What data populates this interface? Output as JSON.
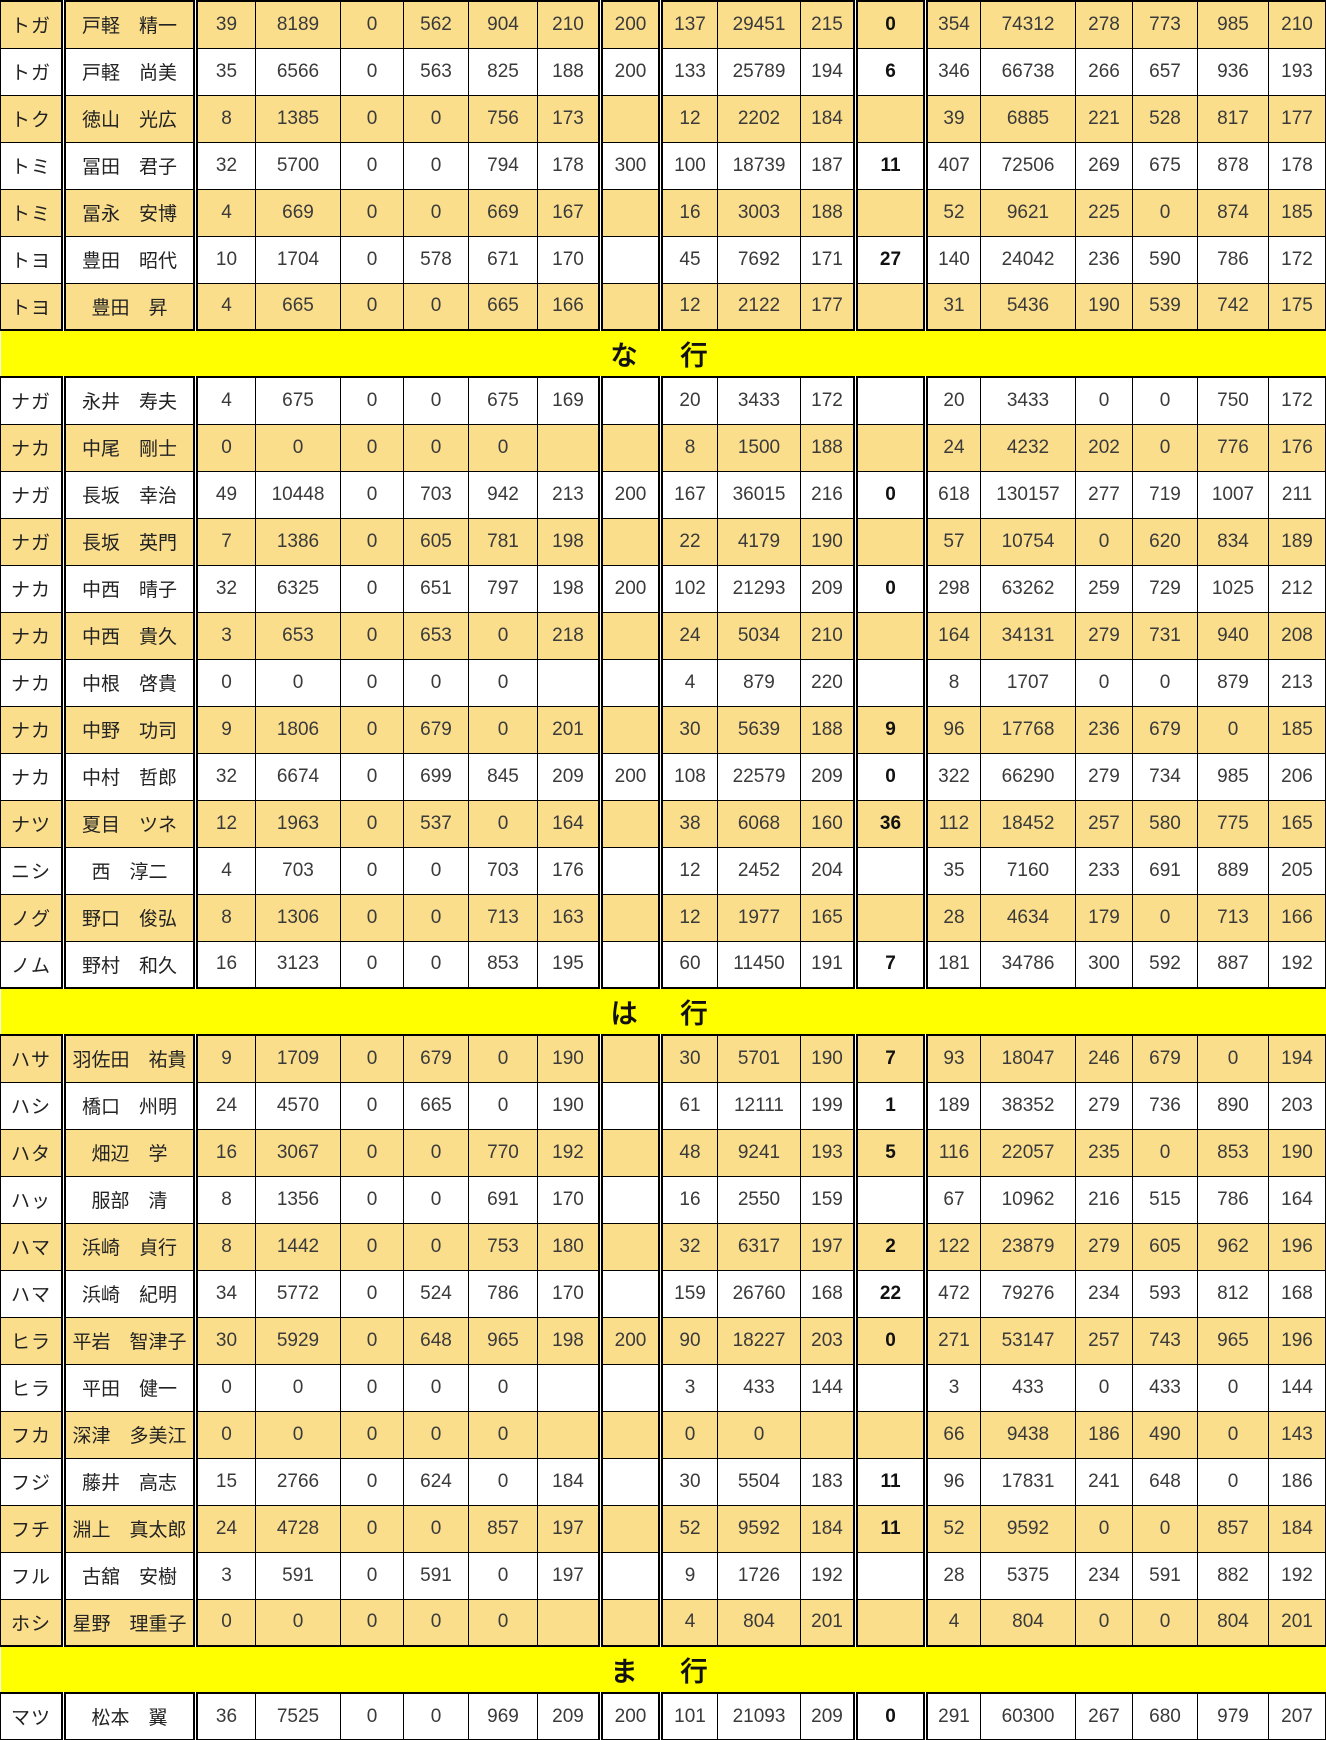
{
  "colors": {
    "row_gold": "#fade8c",
    "row_white": "#ffffff",
    "section_yellow": "#ffff00",
    "grid_border": "#000000"
  },
  "table": {
    "rows": [
      {
        "type": "player",
        "shade": "gold",
        "kana": "トガ",
        "name": "戸軽　精一",
        "values": [
          "39",
          "8189",
          "0",
          "562",
          "904",
          "210",
          "200",
          "137",
          "29451",
          "215",
          "0",
          "354",
          "74312",
          "278",
          "773",
          "985",
          "210"
        ]
      },
      {
        "type": "player",
        "shade": "white",
        "kana": "トガ",
        "name": "戸軽　尚美",
        "values": [
          "35",
          "6566",
          "0",
          "563",
          "825",
          "188",
          "200",
          "133",
          "25789",
          "194",
          "6",
          "346",
          "66738",
          "266",
          "657",
          "936",
          "193"
        ]
      },
      {
        "type": "player",
        "shade": "gold",
        "kana": "トク",
        "name": "徳山　光広",
        "values": [
          "8",
          "1385",
          "0",
          "0",
          "756",
          "173",
          "",
          "12",
          "2202",
          "184",
          "",
          "39",
          "6885",
          "221",
          "528",
          "817",
          "177"
        ]
      },
      {
        "type": "player",
        "shade": "white",
        "kana": "トミ",
        "name": "冨田　君子",
        "values": [
          "32",
          "5700",
          "0",
          "0",
          "794",
          "178",
          "300",
          "100",
          "18739",
          "187",
          "11",
          "407",
          "72506",
          "269",
          "675",
          "878",
          "178"
        ]
      },
      {
        "type": "player",
        "shade": "gold",
        "kana": "トミ",
        "name": "冨永　安博",
        "values": [
          "4",
          "669",
          "0",
          "0",
          "669",
          "167",
          "",
          "16",
          "3003",
          "188",
          "",
          "52",
          "9621",
          "225",
          "0",
          "874",
          "185"
        ]
      },
      {
        "type": "player",
        "shade": "white",
        "kana": "トヨ",
        "name": "豊田　昭代",
        "values": [
          "10",
          "1704",
          "0",
          "578",
          "671",
          "170",
          "",
          "45",
          "7692",
          "171",
          "27",
          "140",
          "24042",
          "236",
          "590",
          "786",
          "172"
        ]
      },
      {
        "type": "player",
        "shade": "gold",
        "kana": "トヨ",
        "name": "豊田　昇",
        "values": [
          "4",
          "665",
          "0",
          "0",
          "665",
          "166",
          "",
          "12",
          "2122",
          "177",
          "",
          "31",
          "5436",
          "190",
          "539",
          "742",
          "175"
        ]
      },
      {
        "type": "section",
        "label": "な　行"
      },
      {
        "type": "player",
        "shade": "white",
        "kana": "ナガ",
        "name": "永井　寿夫",
        "values": [
          "4",
          "675",
          "0",
          "0",
          "675",
          "169",
          "",
          "20",
          "3433",
          "172",
          "",
          "20",
          "3433",
          "0",
          "0",
          "750",
          "172"
        ]
      },
      {
        "type": "player",
        "shade": "gold",
        "kana": "ナカ",
        "name": "中尾　剛士",
        "values": [
          "0",
          "0",
          "0",
          "0",
          "0",
          "",
          "",
          "8",
          "1500",
          "188",
          "",
          "24",
          "4232",
          "202",
          "0",
          "776",
          "176"
        ]
      },
      {
        "type": "player",
        "shade": "white",
        "kana": "ナガ",
        "name": "長坂　幸治",
        "values": [
          "49",
          "10448",
          "0",
          "703",
          "942",
          "213",
          "200",
          "167",
          "36015",
          "216",
          "0",
          "618",
          "130157",
          "277",
          "719",
          "1007",
          "211"
        ]
      },
      {
        "type": "player",
        "shade": "gold",
        "kana": "ナガ",
        "name": "長坂　英門",
        "values": [
          "7",
          "1386",
          "0",
          "605",
          "781",
          "198",
          "",
          "22",
          "4179",
          "190",
          "",
          "57",
          "10754",
          "0",
          "620",
          "834",
          "189"
        ]
      },
      {
        "type": "player",
        "shade": "white",
        "kana": "ナカ",
        "name": "中西　晴子",
        "values": [
          "32",
          "6325",
          "0",
          "651",
          "797",
          "198",
          "200",
          "102",
          "21293",
          "209",
          "0",
          "298",
          "63262",
          "259",
          "729",
          "1025",
          "212"
        ]
      },
      {
        "type": "player",
        "shade": "gold",
        "kana": "ナカ",
        "name": "中西　貴久",
        "values": [
          "3",
          "653",
          "0",
          "653",
          "0",
          "218",
          "",
          "24",
          "5034",
          "210",
          "",
          "164",
          "34131",
          "279",
          "731",
          "940",
          "208"
        ]
      },
      {
        "type": "player",
        "shade": "white",
        "kana": "ナカ",
        "name": "中根　啓貴",
        "values": [
          "0",
          "0",
          "0",
          "0",
          "0",
          "",
          "",
          "4",
          "879",
          "220",
          "",
          "8",
          "1707",
          "0",
          "0",
          "879",
          "213"
        ]
      },
      {
        "type": "player",
        "shade": "gold",
        "kana": "ナカ",
        "name": "中野　功司",
        "values": [
          "9",
          "1806",
          "0",
          "679",
          "0",
          "201",
          "",
          "30",
          "5639",
          "188",
          "9",
          "96",
          "17768",
          "236",
          "679",
          "0",
          "185"
        ]
      },
      {
        "type": "player",
        "shade": "white",
        "kana": "ナカ",
        "name": "中村　哲郎",
        "values": [
          "32",
          "6674",
          "0",
          "699",
          "845",
          "209",
          "200",
          "108",
          "22579",
          "209",
          "0",
          "322",
          "66290",
          "279",
          "734",
          "985",
          "206"
        ]
      },
      {
        "type": "player",
        "shade": "gold",
        "kana": "ナツ",
        "name": "夏目　ツネ",
        "values": [
          "12",
          "1963",
          "0",
          "537",
          "0",
          "164",
          "",
          "38",
          "6068",
          "160",
          "36",
          "112",
          "18452",
          "257",
          "580",
          "775",
          "165"
        ]
      },
      {
        "type": "player",
        "shade": "white",
        "kana": "ニシ",
        "name": "西　淳二",
        "values": [
          "4",
          "703",
          "0",
          "0",
          "703",
          "176",
          "",
          "12",
          "2452",
          "204",
          "",
          "35",
          "7160",
          "233",
          "691",
          "889",
          "205"
        ]
      },
      {
        "type": "player",
        "shade": "gold",
        "kana": "ノグ",
        "name": "野口　俊弘",
        "values": [
          "8",
          "1306",
          "0",
          "0",
          "713",
          "163",
          "",
          "12",
          "1977",
          "165",
          "",
          "28",
          "4634",
          "179",
          "0",
          "713",
          "166"
        ]
      },
      {
        "type": "player",
        "shade": "white",
        "kana": "ノム",
        "name": "野村　和久",
        "values": [
          "16",
          "3123",
          "0",
          "0",
          "853",
          "195",
          "",
          "60",
          "11450",
          "191",
          "7",
          "181",
          "34786",
          "300",
          "592",
          "887",
          "192"
        ]
      },
      {
        "type": "section",
        "label": "は　行"
      },
      {
        "type": "player",
        "shade": "gold",
        "kana": "ハサ",
        "name": "羽佐田　祐貴",
        "values": [
          "9",
          "1709",
          "0",
          "679",
          "0",
          "190",
          "",
          "30",
          "5701",
          "190",
          "7",
          "93",
          "18047",
          "246",
          "679",
          "0",
          "194"
        ]
      },
      {
        "type": "player",
        "shade": "white",
        "kana": "ハシ",
        "name": "橋口　州明",
        "values": [
          "24",
          "4570",
          "0",
          "665",
          "0",
          "190",
          "",
          "61",
          "12111",
          "199",
          "1",
          "189",
          "38352",
          "279",
          "736",
          "890",
          "203"
        ]
      },
      {
        "type": "player",
        "shade": "gold",
        "kana": "ハタ",
        "name": "畑辺　学",
        "values": [
          "16",
          "3067",
          "0",
          "0",
          "770",
          "192",
          "",
          "48",
          "9241",
          "193",
          "5",
          "116",
          "22057",
          "235",
          "0",
          "853",
          "190"
        ]
      },
      {
        "type": "player",
        "shade": "white",
        "kana": "ハッ",
        "name": "服部　清",
        "values": [
          "8",
          "1356",
          "0",
          "0",
          "691",
          "170",
          "",
          "16",
          "2550",
          "159",
          "",
          "67",
          "10962",
          "216",
          "515",
          "786",
          "164"
        ]
      },
      {
        "type": "player",
        "shade": "gold",
        "kana": "ハマ",
        "name": "浜崎　貞行",
        "values": [
          "8",
          "1442",
          "0",
          "0",
          "753",
          "180",
          "",
          "32",
          "6317",
          "197",
          "2",
          "122",
          "23879",
          "279",
          "605",
          "962",
          "196"
        ]
      },
      {
        "type": "player",
        "shade": "white",
        "kana": "ハマ",
        "name": "浜崎　紀明",
        "values": [
          "34",
          "5772",
          "0",
          "524",
          "786",
          "170",
          "",
          "159",
          "26760",
          "168",
          "22",
          "472",
          "79276",
          "234",
          "593",
          "812",
          "168"
        ]
      },
      {
        "type": "player",
        "shade": "gold",
        "kana": "ヒラ",
        "name": "平岩　智津子",
        "values": [
          "30",
          "5929",
          "0",
          "648",
          "965",
          "198",
          "200",
          "90",
          "18227",
          "203",
          "0",
          "271",
          "53147",
          "257",
          "743",
          "965",
          "196"
        ]
      },
      {
        "type": "player",
        "shade": "white",
        "kana": "ヒラ",
        "name": "平田　健一",
        "values": [
          "0",
          "0",
          "0",
          "0",
          "0",
          "",
          "",
          "3",
          "433",
          "144",
          "",
          "3",
          "433",
          "0",
          "433",
          "0",
          "144"
        ]
      },
      {
        "type": "player",
        "shade": "gold",
        "kana": "フカ",
        "name": "深津　多美江",
        "values": [
          "0",
          "0",
          "0",
          "0",
          "0",
          "",
          "",
          "0",
          "0",
          "",
          "",
          "66",
          "9438",
          "186",
          "490",
          "0",
          "143"
        ]
      },
      {
        "type": "player",
        "shade": "white",
        "kana": "フジ",
        "name": "藤井　高志",
        "values": [
          "15",
          "2766",
          "0",
          "624",
          "0",
          "184",
          "",
          "30",
          "5504",
          "183",
          "11",
          "96",
          "17831",
          "241",
          "648",
          "0",
          "186"
        ]
      },
      {
        "type": "player",
        "shade": "gold",
        "kana": "フチ",
        "name": "淵上　真太郎",
        "values": [
          "24",
          "4728",
          "0",
          "0",
          "857",
          "197",
          "",
          "52",
          "9592",
          "184",
          "11",
          "52",
          "9592",
          "0",
          "0",
          "857",
          "184"
        ]
      },
      {
        "type": "player",
        "shade": "white",
        "kana": "フル",
        "name": "古舘　安樹",
        "values": [
          "3",
          "591",
          "0",
          "591",
          "0",
          "197",
          "",
          "9",
          "1726",
          "192",
          "",
          "28",
          "5375",
          "234",
          "591",
          "882",
          "192"
        ]
      },
      {
        "type": "player",
        "shade": "gold",
        "kana": "ホシ",
        "name": "星野　理重子",
        "values": [
          "0",
          "0",
          "0",
          "0",
          "0",
          "",
          "",
          "4",
          "804",
          "201",
          "",
          "4",
          "804",
          "0",
          "0",
          "804",
          "201"
        ]
      },
      {
        "type": "section",
        "label": "ま　行"
      },
      {
        "type": "player",
        "shade": "white",
        "kana": "マツ",
        "name": "松本　翼",
        "values": [
          "36",
          "7525",
          "0",
          "0",
          "969",
          "209",
          "200",
          "101",
          "21093",
          "209",
          "0",
          "291",
          "60300",
          "267",
          "680",
          "979",
          "207"
        ]
      }
    ]
  }
}
